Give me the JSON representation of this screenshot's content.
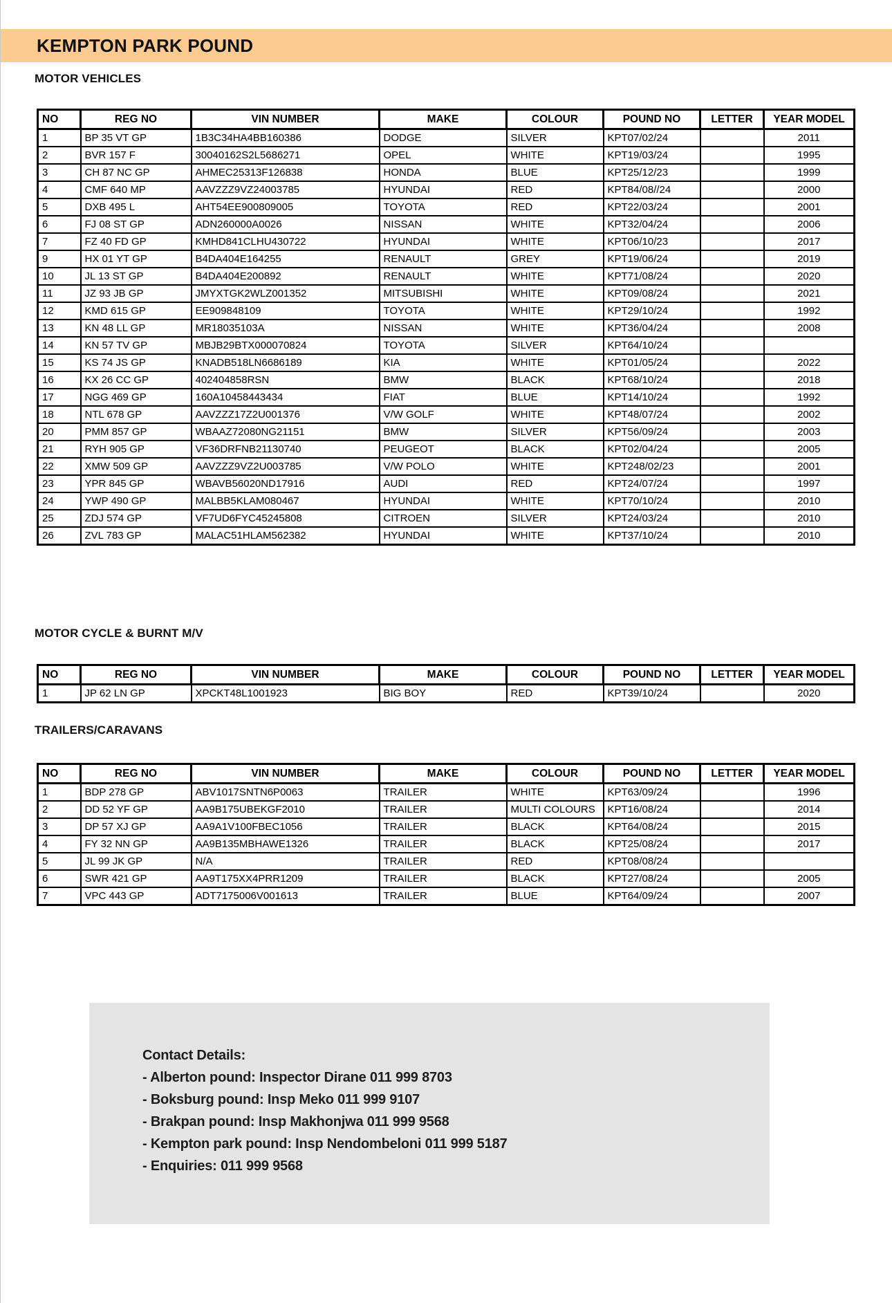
{
  "page": {
    "title": "KEMPTON PARK POUND",
    "accent_color": "#fbcb90",
    "contact_box_color": "#e4e4e4"
  },
  "table_headers": [
    "NO",
    "REG NO",
    "VIN NUMBER",
    "MAKE",
    "COLOUR",
    "POUND NO",
    "LETTER",
    "YEAR MODEL"
  ],
  "sections": [
    {
      "heading": "MOTOR VEHICLES",
      "rows": [
        [
          "1",
          "BP 35 VT GP",
          "1B3C34HA4BB160386",
          "DODGE",
          "SILVER",
          "KPT07/02/24",
          "",
          "2011"
        ],
        [
          "2",
          "BVR 157 F",
          "30040162S2L5686271",
          "OPEL",
          "WHITE",
          "KPT19/03/24",
          "",
          "1995"
        ],
        [
          "3",
          "CH 87 NC GP",
          "AHMEC25313F126838",
          "HONDA",
          "BLUE",
          "KPT25/12/23",
          "",
          "1999"
        ],
        [
          "4",
          "CMF 640 MP",
          "AAVZZZ9VZ24003785",
          "HYUNDAI",
          "RED",
          "KPT84/08//24",
          "",
          "2000"
        ],
        [
          "5",
          "DXB 495 L",
          "AHT54EE900809005",
          "TOYOTA",
          "RED",
          "KPT22/03/24",
          "",
          "2001"
        ],
        [
          "6",
          "FJ 08 ST GP",
          "ADN260000A0026",
          "NISSAN",
          "WHITE",
          "KPT32/04/24",
          "",
          "2006"
        ],
        [
          "7",
          "FZ 40 FD GP",
          "KMHD841CLHU430722",
          "HYUNDAI",
          "WHITE",
          "KPT06/10/23",
          "",
          "2017"
        ],
        [
          "9",
          "HX 01 YT GP",
          "B4DA404E164255",
          "RENAULT",
          "GREY",
          "KPT19/06/24",
          "",
          "2019"
        ],
        [
          "10",
          "JL 13 ST GP",
          "B4DA404E200892",
          "RENAULT",
          "WHITE",
          "KPT71/08/24",
          "",
          "2020"
        ],
        [
          "11",
          "JZ 93 JB GP",
          "JMYXTGK2WLZ001352",
          "MITSUBISHI",
          "WHITE",
          "KPT09/08/24",
          "",
          "2021"
        ],
        [
          "12",
          "KMD 615 GP",
          "EE909848109",
          "TOYOTA",
          "WHITE",
          "KPT29/10/24",
          "",
          "1992"
        ],
        [
          "13",
          "KN 48 LL GP",
          "MR18035103A",
          "NISSAN",
          "WHITE",
          "KPT36/04/24",
          "",
          "2008"
        ],
        [
          "14",
          "KN 57 TV GP",
          "MBJB29BTX000070824",
          "TOYOTA",
          "SILVER",
          "KPT64/10/24",
          "",
          ""
        ],
        [
          "15",
          "KS 74 JS GP",
          "KNADB518LN6686189",
          "KIA",
          "WHITE",
          "KPT01/05/24",
          "",
          "2022"
        ],
        [
          "16",
          "KX 26 CC GP",
          "402404858RSN",
          "BMW",
          "BLACK",
          "KPT68/10/24",
          "",
          "2018"
        ],
        [
          "17",
          "NGG 469 GP",
          "160A10458443434",
          "FIAT",
          "BLUE",
          "KPT14/10/24",
          "",
          "1992"
        ],
        [
          "18",
          "NTL 678 GP",
          "AAVZZZ17Z2U001376",
          "V/W GOLF",
          "WHITE",
          "KPT48/07/24",
          "",
          "2002"
        ],
        [
          "20",
          "PMM 857 GP",
          "WBAAZ72080NG21151",
          "BMW",
          "SILVER",
          "KPT56/09/24",
          "",
          "2003"
        ],
        [
          "21",
          "RYH 905 GP",
          "VF36DRFNB21130740",
          "PEUGEOT",
          "BLACK",
          "KPT02/04/24",
          "",
          "2005"
        ],
        [
          "22",
          "XMW 509 GP",
          "AAVZZZ9VZ2U003785",
          "V/W POLO",
          "WHITE",
          "KPT248/02/23",
          "",
          "2001"
        ],
        [
          "23",
          "YPR 845 GP",
          "WBAVB56020ND17916",
          "AUDI",
          "RED",
          "KPT24/07/24",
          "",
          "1997"
        ],
        [
          "24",
          "YWP 490 GP",
          "MALBB5KLAM080467",
          "HYUNDAI",
          "WHITE",
          "KPT70/10/24",
          "",
          "2010"
        ],
        [
          "25",
          "ZDJ 574 GP",
          "VF7UD6FYC45245808",
          "CITROEN",
          "SILVER",
          "KPT24/03/24",
          "",
          "2010"
        ],
        [
          "26",
          "ZVL 783 GP",
          "MALAC51HLAM562382",
          "HYUNDAI",
          "WHITE",
          "KPT37/10/24",
          "",
          "2010"
        ]
      ]
    },
    {
      "heading": "MOTOR CYCLE & BURNT M/V",
      "rows": [
        [
          "1",
          "JP 62 LN GP",
          "XPCKT48L1001923",
          "BIG BOY",
          "RED",
          "KPT39/10/24",
          "",
          "2020"
        ]
      ]
    },
    {
      "heading": "TRAILERS/CARAVANS",
      "rows": [
        [
          "1",
          "BDP 278 GP",
          "ABV1017SNTN6P0063",
          "TRAILER",
          "WHITE",
          "KPT63/09/24",
          "",
          "1996"
        ],
        [
          "2",
          "DD 52 YF GP",
          "AA9B175UBEKGF2010",
          "TRAILER",
          "MULTI COLOURS",
          "KPT16/08/24",
          "",
          "2014"
        ],
        [
          "3",
          "DP 57 XJ GP",
          "AA9A1V100FBEC1056",
          "TRAILER",
          "BLACK",
          "KPT64/08/24",
          "",
          "2015"
        ],
        [
          "4",
          "FY 32 NN GP",
          "AA9B135MBHAWE1326",
          "TRAILER",
          "BLACK",
          "KPT25/08/24",
          "",
          "2017"
        ],
        [
          "5",
          "JL 99 JK GP",
          "N/A",
          "TRAILER",
          "RED",
          "KPT08/08/24",
          "",
          ""
        ],
        [
          "6",
          "SWR 421 GP",
          "AA9T175XX4PRR1209",
          "TRAILER",
          "BLACK",
          "KPT27/08/24",
          "",
          "2005"
        ],
        [
          "7",
          "VPC 443 GP",
          "ADT7175006V001613",
          "TRAILER",
          "BLUE",
          "KPT64/09/24",
          "",
          "2007"
        ]
      ]
    }
  ],
  "contact": {
    "title": "Contact Details:",
    "lines": [
      "- Alberton pound: Inspector Dirane 011 999 8703",
      "- Boksburg pound: Insp Meko 011 999 9107",
      "- Brakpan pound: Insp Makhonjwa 011 999 9568",
      "- Kempton park pound: Insp Nendombeloni 011 999 5187",
      "- Enquiries: 011 999 9568"
    ]
  }
}
